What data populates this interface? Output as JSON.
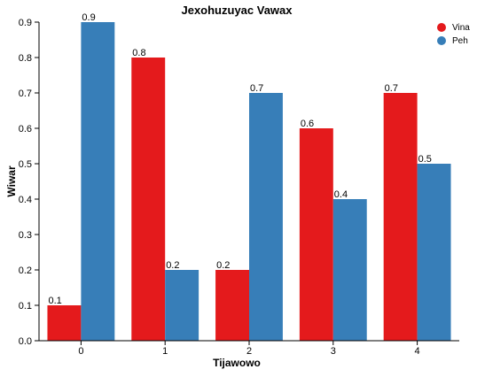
{
  "chart_data": {
    "type": "bar",
    "title": "Jexohuzuyac Vawax",
    "xlabel": "Tijawowo",
    "ylabel": "Wiwar",
    "categories": [
      "0",
      "1",
      "2",
      "3",
      "4"
    ],
    "yticks": [
      "0.0",
      "0.1",
      "0.2",
      "0.3",
      "0.4",
      "0.5",
      "0.6",
      "0.7",
      "0.8",
      "0.9"
    ],
    "ylim": [
      0,
      0.9
    ],
    "grid": false,
    "legend_position": "top-right",
    "series": [
      {
        "name": "Vina",
        "color": "#e41a1c",
        "values": [
          0.1,
          0.8,
          0.2,
          0.6,
          0.7
        ],
        "labels": [
          "0.1",
          "0.8",
          "0.2",
          "0.6",
          "0.7"
        ]
      },
      {
        "name": "Peh",
        "color": "#377eb8",
        "values": [
          0.9,
          0.2,
          0.7,
          0.4,
          0.5
        ],
        "labels": [
          "0.9",
          "0.2",
          "0.7",
          "0.4",
          "0.5"
        ]
      }
    ]
  }
}
